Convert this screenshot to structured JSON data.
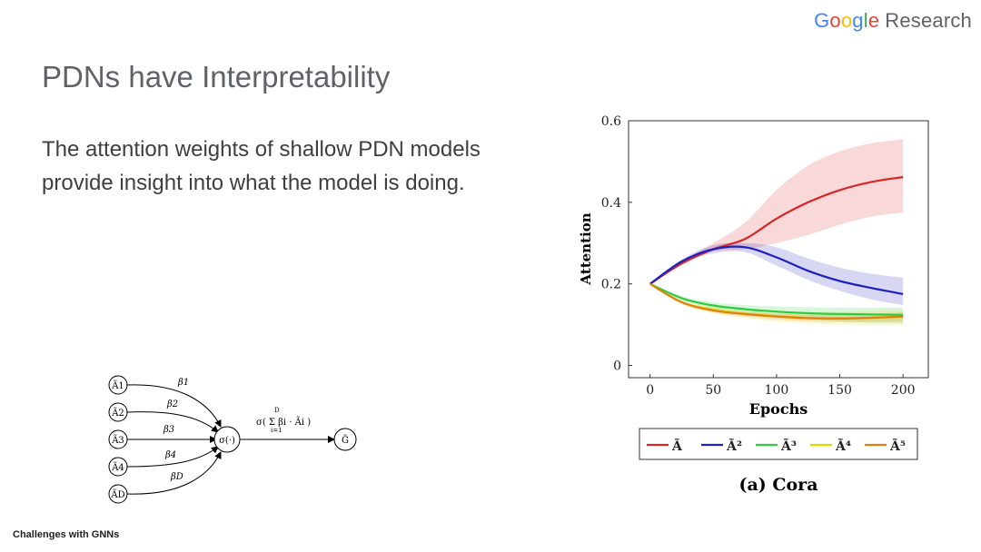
{
  "header": {
    "logo_letters": [
      "G",
      "o",
      "o",
      "g",
      "l",
      "e"
    ],
    "logo_suffix": "Research"
  },
  "slide": {
    "title": "PDNs have Interpretability",
    "body": "The attention weights of shallow PDN models provide insight into what the model is doing.",
    "footer": "Challenges with GNNs"
  },
  "diagram": {
    "inputs": [
      "Ã1",
      "Ã2",
      "Ã3",
      "Ã4",
      "ÃD"
    ],
    "weights": [
      "β1",
      "β2",
      "β3",
      "β4",
      "βD"
    ],
    "node": "σ(·)",
    "output": "G̃",
    "formula": "σ( Σ βi · Ãi )",
    "sum_upper": "D",
    "sum_lower": "i=1"
  },
  "chart_data": {
    "type": "line",
    "title": "(a) Cora",
    "xlabel": "Epochs",
    "ylabel": "Attention",
    "xlim": [
      -17,
      220
    ],
    "ylim": [
      -0.03,
      0.6
    ],
    "xticks": [
      0,
      50,
      100,
      150,
      200
    ],
    "yticks": [
      0,
      0.2,
      0.4,
      0.6
    ],
    "legend_position": "bottom",
    "x": [
      0,
      25,
      50,
      75,
      100,
      125,
      150,
      175,
      200
    ],
    "series": [
      {
        "name": "Ã",
        "color": "#d62728",
        "values": [
          0.2,
          0.25,
          0.285,
          0.31,
          0.36,
          0.4,
          0.43,
          0.45,
          0.462
        ],
        "upper": [
          0.2,
          0.255,
          0.3,
          0.35,
          0.43,
          0.49,
          0.525,
          0.545,
          0.555
        ],
        "lower": [
          0.2,
          0.245,
          0.28,
          0.285,
          0.3,
          0.32,
          0.345,
          0.365,
          0.375
        ]
      },
      {
        "name": "Ã²",
        "color": "#1f1fbf",
        "values": [
          0.2,
          0.255,
          0.285,
          0.29,
          0.265,
          0.232,
          0.207,
          0.19,
          0.175
        ],
        "upper": [
          0.2,
          0.26,
          0.295,
          0.3,
          0.29,
          0.262,
          0.24,
          0.225,
          0.215
        ],
        "lower": [
          0.2,
          0.25,
          0.275,
          0.278,
          0.245,
          0.21,
          0.183,
          0.162,
          0.148
        ]
      },
      {
        "name": "Ã³",
        "color": "#2ecc40",
        "values": [
          0.2,
          0.165,
          0.147,
          0.138,
          0.132,
          0.128,
          0.126,
          0.125,
          0.124
        ],
        "upper": [
          0.2,
          0.17,
          0.155,
          0.148,
          0.145,
          0.143,
          0.142,
          0.142,
          0.142
        ],
        "lower": [
          0.2,
          0.16,
          0.14,
          0.128,
          0.12,
          0.113,
          0.108,
          0.105,
          0.103
        ]
      },
      {
        "name": "Ã⁴",
        "color": "#e0d800",
        "values": [
          0.2,
          0.155,
          0.137,
          0.127,
          0.121,
          0.117,
          0.116,
          0.117,
          0.119
        ],
        "upper": [
          0.2,
          0.16,
          0.145,
          0.137,
          0.133,
          0.131,
          0.132,
          0.134,
          0.137
        ],
        "lower": [
          0.2,
          0.15,
          0.128,
          0.116,
          0.108,
          0.103,
          0.1,
          0.099,
          0.098
        ]
      },
      {
        "name": "Ã⁵",
        "color": "#e08010",
        "values": [
          0.2,
          0.155,
          0.135,
          0.126,
          0.12,
          0.116,
          0.115,
          0.117,
          0.12
        ],
        "upper": [
          0.2,
          0.158,
          0.14,
          0.132,
          0.127,
          0.124,
          0.124,
          0.126,
          0.13
        ],
        "lower": [
          0.2,
          0.152,
          0.13,
          0.12,
          0.113,
          0.108,
          0.106,
          0.107,
          0.108
        ]
      }
    ]
  }
}
